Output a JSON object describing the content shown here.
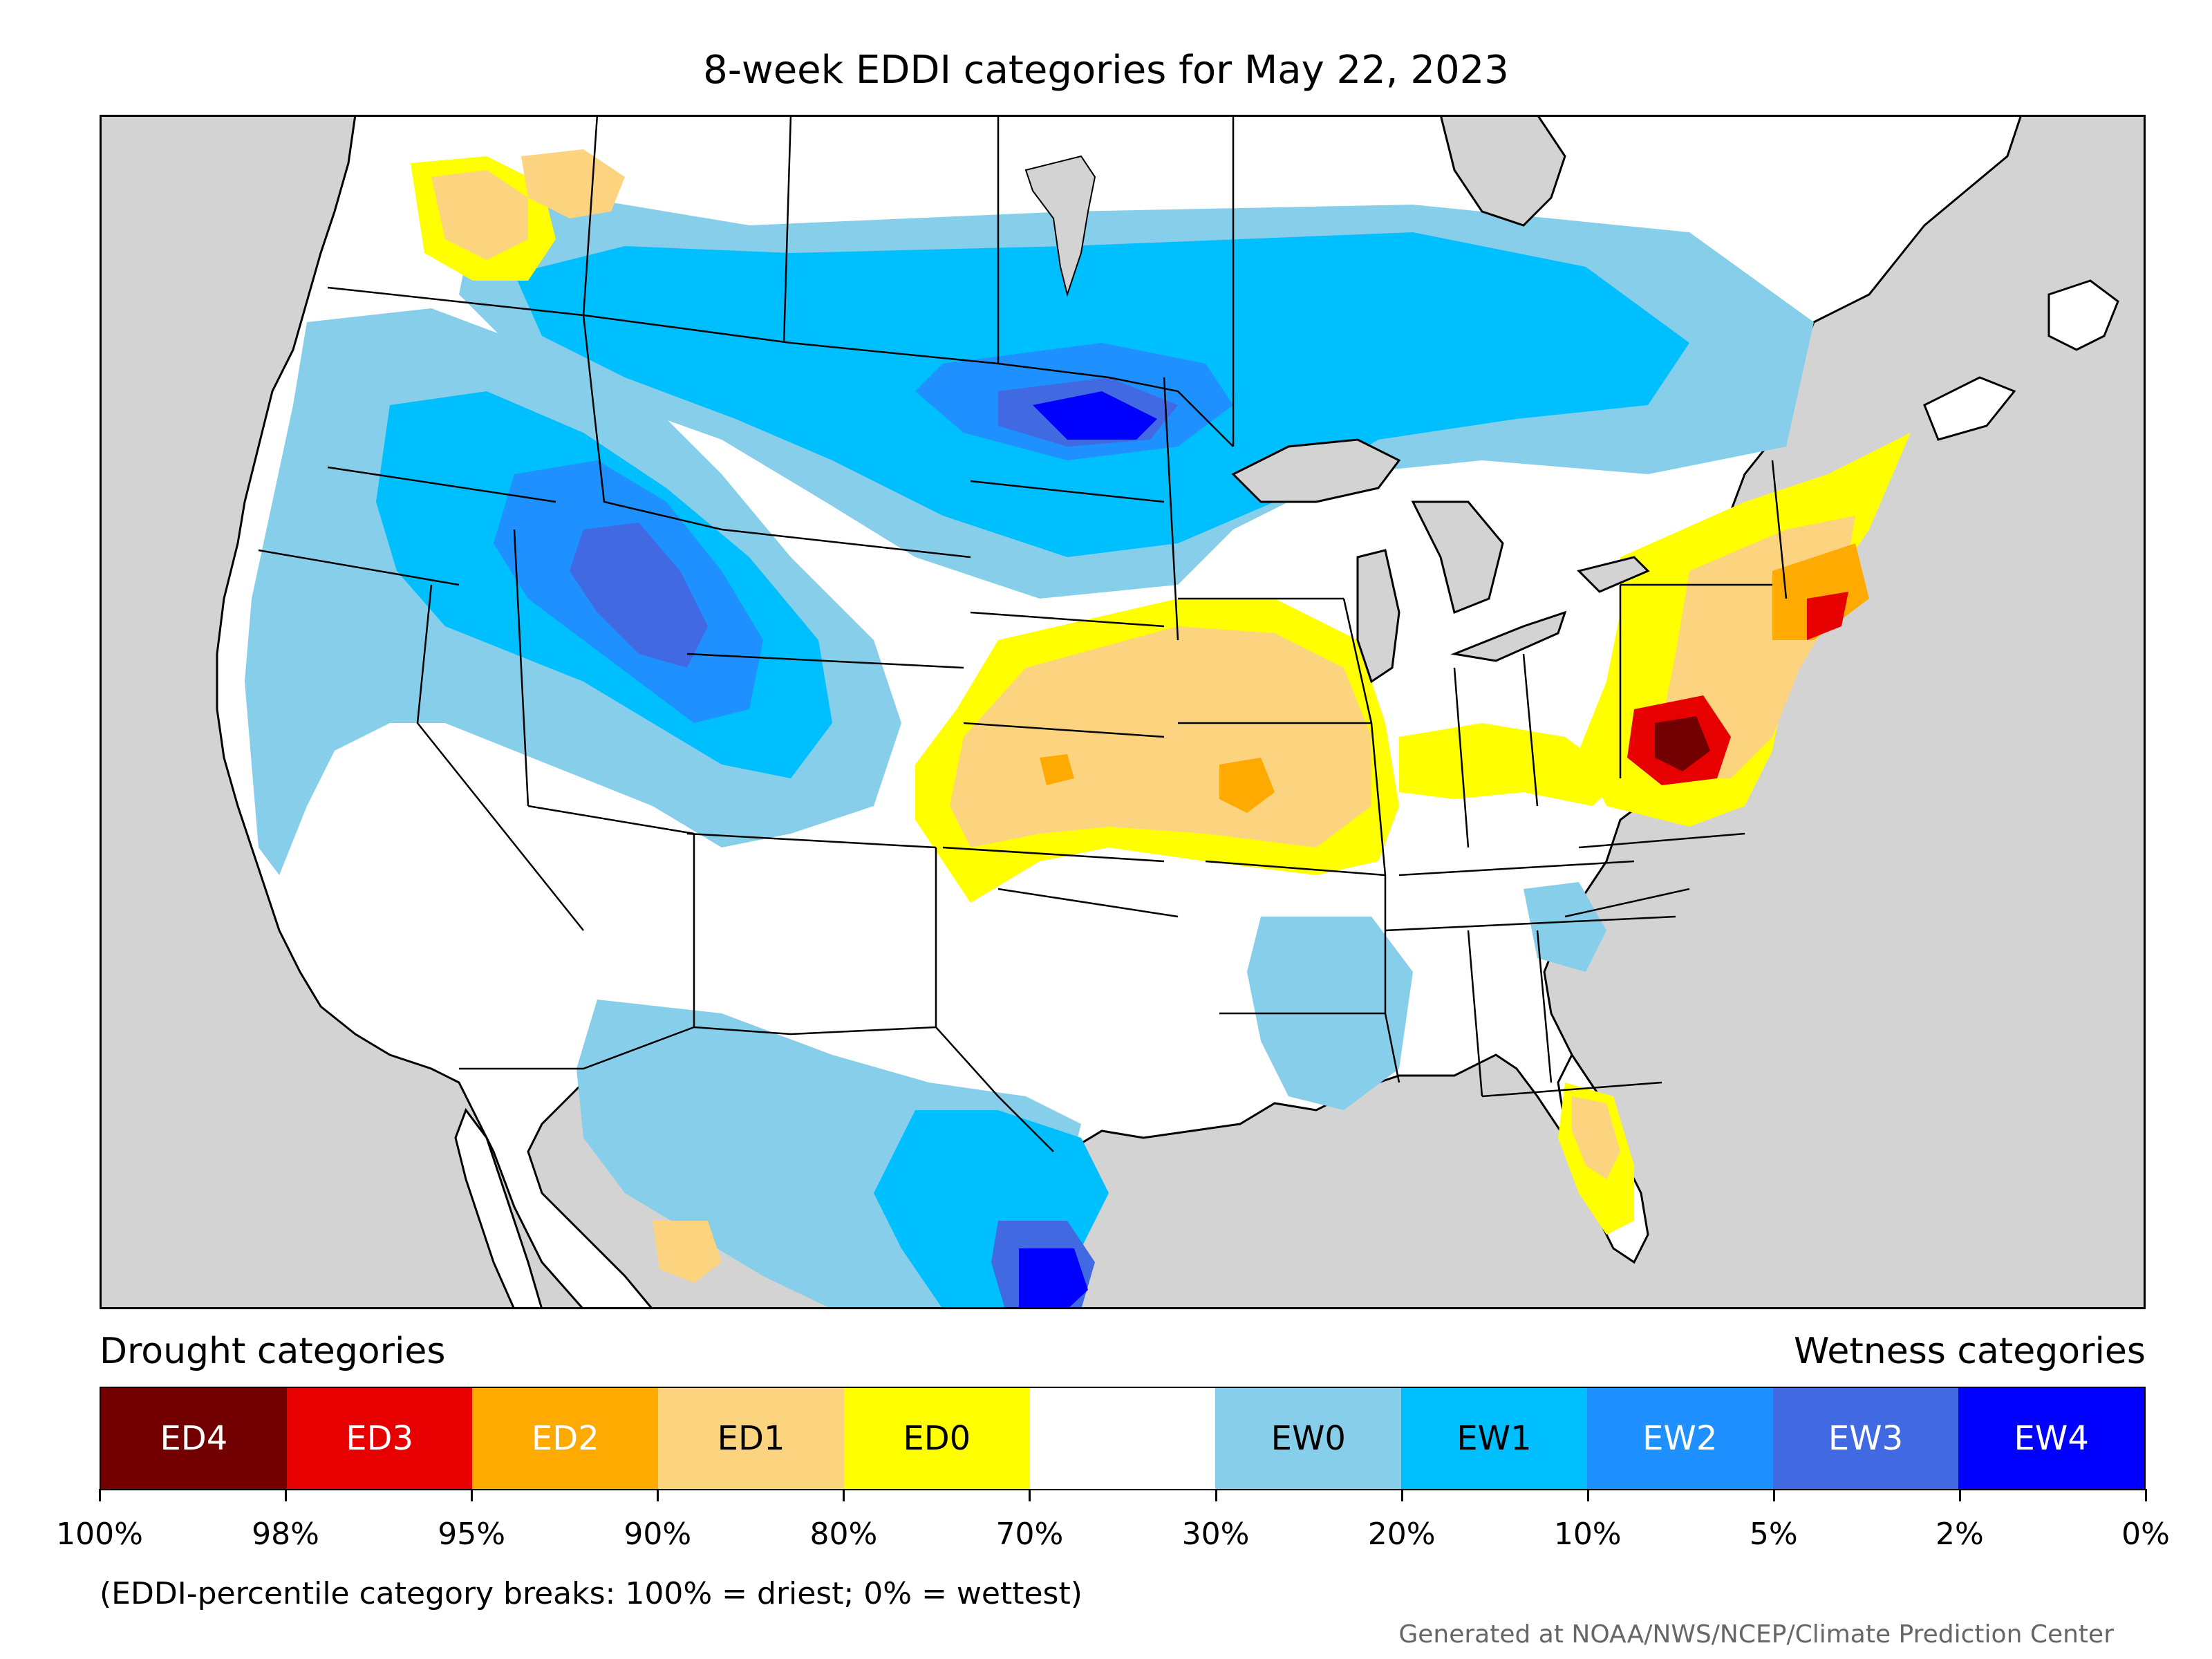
{
  "title": "8-week EDDI categories for May 22, 2023",
  "legend": {
    "drought_title": "Drought categories",
    "wetness_title": "Wetness categories",
    "categories": [
      {
        "label": "ED4",
        "color": "#730000",
        "text_color": "#ffffff"
      },
      {
        "label": "ED3",
        "color": "#e60000",
        "text_color": "#ffffff"
      },
      {
        "label": "ED2",
        "color": "#ffaa00",
        "text_color": "#ffffff"
      },
      {
        "label": "ED1",
        "color": "#fcd37f",
        "text_color": "#000000"
      },
      {
        "label": "ED0",
        "color": "#ffff00",
        "text_color": "#000000"
      },
      {
        "label": "",
        "color": "#ffffff",
        "text_color": "#000000"
      },
      {
        "label": "EW0",
        "color": "#87ceeb",
        "text_color": "#000000"
      },
      {
        "label": "EW1",
        "color": "#00bfff",
        "text_color": "#000000"
      },
      {
        "label": "EW2",
        "color": "#1e90ff",
        "text_color": "#ffffff"
      },
      {
        "label": "EW3",
        "color": "#4169e1",
        "text_color": "#ffffff"
      },
      {
        "label": "EW4",
        "color": "#0000ff",
        "text_color": "#ffffff"
      }
    ],
    "tick_labels": [
      "100%",
      "98%",
      "95%",
      "90%",
      "80%",
      "70%",
      "30%",
      "20%",
      "10%",
      "5%",
      "2%",
      "0%"
    ]
  },
  "note": "(EDDI-percentile category breaks: 100% = driest; 0% = wettest)",
  "credit": "Generated at NOAA/NWS/NCEP/Climate Prediction Center",
  "map": {
    "background_color": "#d3d3d3",
    "land_color": "#ffffff"
  }
}
